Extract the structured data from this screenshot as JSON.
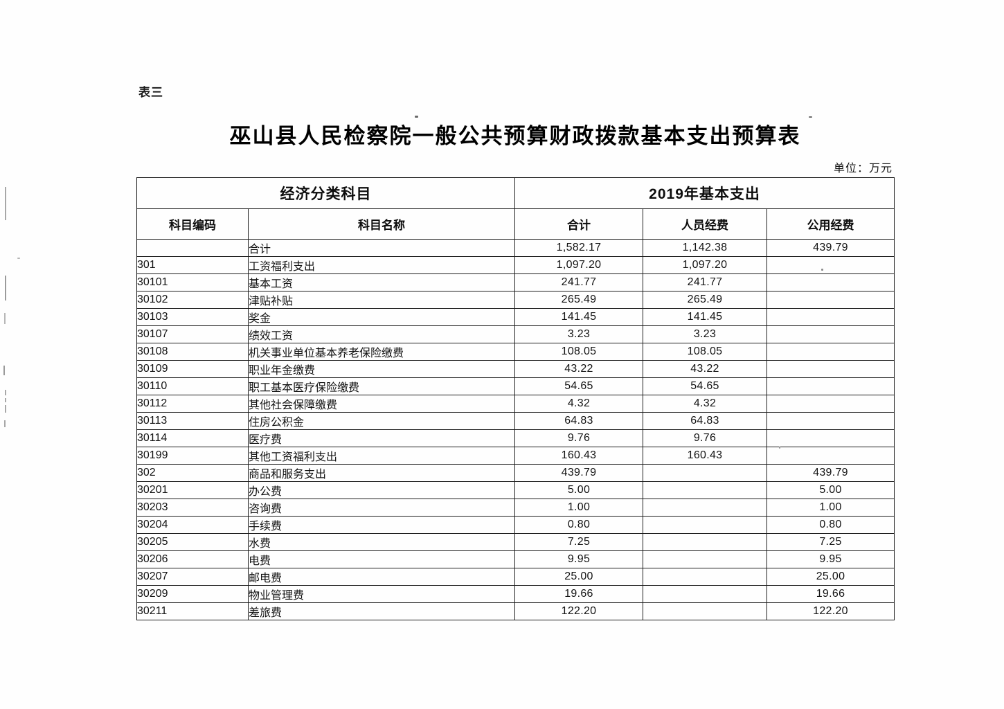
{
  "page": {
    "table_label": "表三",
    "title": "巫山县人民检察院一般公共预算财政拨款基本支出预算表",
    "unit_label": "单位：万元"
  },
  "table": {
    "header_groups": [
      {
        "label": "经济分类科目"
      },
      {
        "label": "2019年基本支出"
      }
    ],
    "columns": [
      "科目编码",
      "科目名称",
      "合计",
      "人员经费",
      "公用经费"
    ],
    "rows": [
      {
        "code": "",
        "name": "合计",
        "total": "1,582.17",
        "personnel": "1,142.38",
        "public": "439.79",
        "level": "parent"
      },
      {
        "code": "301",
        "name": "工资福利支出",
        "total": "1,097.20",
        "personnel": "1,097.20",
        "public": "",
        "level": "parent"
      },
      {
        "code": "30101",
        "name": "基本工资",
        "total": "241.77",
        "personnel": "241.77",
        "public": "",
        "level": "sub"
      },
      {
        "code": "30102",
        "name": "津贴补贴",
        "total": "265.49",
        "personnel": "265.49",
        "public": "",
        "level": "sub"
      },
      {
        "code": "30103",
        "name": "奖金",
        "total": "141.45",
        "personnel": "141.45",
        "public": "",
        "level": "sub"
      },
      {
        "code": "30107",
        "name": "绩效工资",
        "total": "3.23",
        "personnel": "3.23",
        "public": "",
        "level": "sub"
      },
      {
        "code": "30108",
        "name": "机关事业单位基本养老保险缴费",
        "total": "108.05",
        "personnel": "108.05",
        "public": "",
        "level": "sub"
      },
      {
        "code": "30109",
        "name": "职业年金缴费",
        "total": "43.22",
        "personnel": "43.22",
        "public": "",
        "level": "sub"
      },
      {
        "code": "30110",
        "name": "职工基本医疗保险缴费",
        "total": "54.65",
        "personnel": "54.65",
        "public": "",
        "level": "sub"
      },
      {
        "code": "30112",
        "name": "其他社会保障缴费",
        "total": "4.32",
        "personnel": "4.32",
        "public": "",
        "level": "sub"
      },
      {
        "code": "30113",
        "name": "住房公积金",
        "total": "64.83",
        "personnel": "64.83",
        "public": "",
        "level": "sub"
      },
      {
        "code": "30114",
        "name": "医疗费",
        "total": "9.76",
        "personnel": "9.76",
        "public": "",
        "level": "sub"
      },
      {
        "code": "30199",
        "name": "其他工资福利支出",
        "total": "160.43",
        "personnel": "160.43",
        "public": "",
        "level": "sub"
      },
      {
        "code": "302",
        "name": "商品和服务支出",
        "total": "439.79",
        "personnel": "",
        "public": "439.79",
        "level": "parent"
      },
      {
        "code": "30201",
        "name": "办公费",
        "total": "5.00",
        "personnel": "",
        "public": "5.00",
        "level": "sub"
      },
      {
        "code": "30203",
        "name": "咨询费",
        "total": "1.00",
        "personnel": "",
        "public": "1.00",
        "level": "sub"
      },
      {
        "code": "30204",
        "name": "手续费",
        "total": "0.80",
        "personnel": "",
        "public": "0.80",
        "level": "sub"
      },
      {
        "code": "30205",
        "name": "水费",
        "total": "7.25",
        "personnel": "",
        "public": "7.25",
        "level": "sub"
      },
      {
        "code": "30206",
        "name": "电费",
        "total": "9.95",
        "personnel": "",
        "public": "9.95",
        "level": "sub"
      },
      {
        "code": "30207",
        "name": "邮电费",
        "total": "25.00",
        "personnel": "",
        "public": "25.00",
        "level": "sub"
      },
      {
        "code": "30209",
        "name": "物业管理费",
        "total": "19.66",
        "personnel": "",
        "public": "19.66",
        "level": "sub"
      },
      {
        "code": "30211",
        "name": "差旅费",
        "total": "122.20",
        "personnel": "",
        "public": "122.20",
        "level": "sub"
      }
    ]
  },
  "colors": {
    "border": "#1b1b1b",
    "text": "#121212",
    "background": "#fefefe"
  }
}
